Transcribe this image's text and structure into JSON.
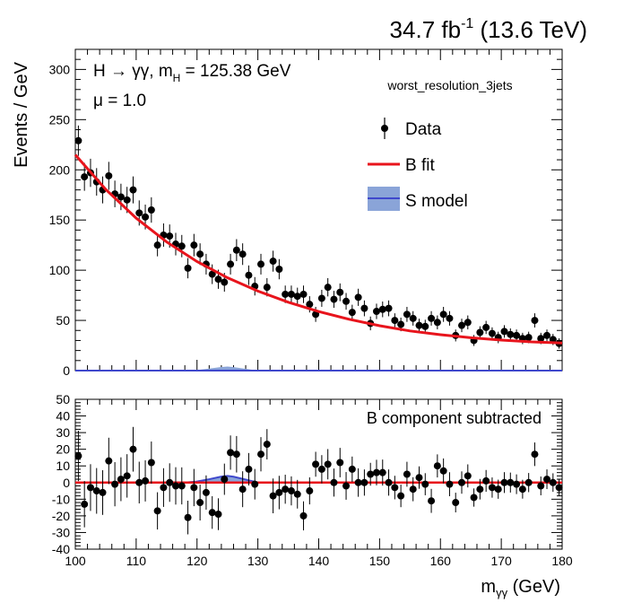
{
  "header": {
    "lumi": "34.7 fb",
    "lumi_sup": "-1",
    "energy": " (13.6 TeV)"
  },
  "annotations": {
    "process_prefix": "H → γγ, m",
    "process_sub": "H",
    "process_suffix": " = 125.38 GeV",
    "mu": "μ = 1.0",
    "category": "worst_resolution_3jets",
    "subtracted": "B component subtracted"
  },
  "legend": {
    "placement": "top-right",
    "entries": [
      {
        "label": "Data",
        "kind": "marker"
      },
      {
        "label": "B fit",
        "kind": "line"
      },
      {
        "label": "S model",
        "kind": "band"
      }
    ]
  },
  "colors": {
    "data": "#000000",
    "bfit": "#e8141c",
    "smodel_fill": "#8aa4d8",
    "smodel_line": "#3f48cc"
  },
  "chart_data": [
    {
      "type": "scatter",
      "panel": "main",
      "ylabel": "Events / GeV",
      "xlim": [
        100,
        180
      ],
      "ylim": [
        0,
        320
      ],
      "yticks": [
        0,
        50,
        100,
        150,
        200,
        250,
        300
      ],
      "series": [
        {
          "name": "Data",
          "x": [
            100.5,
            101.5,
            102.5,
            103.5,
            104.5,
            105.5,
            106.5,
            107.5,
            108.5,
            109.5,
            110.5,
            111.5,
            112.5,
            113.5,
            114.5,
            115.5,
            116.5,
            117.5,
            118.5,
            119.5,
            120.5,
            121.5,
            122.5,
            123.5,
            124.5,
            125.5,
            126.5,
            127.5,
            128.5,
            129.5,
            130.5,
            131.5,
            132.5,
            133.5,
            134.5,
            135.5,
            136.5,
            137.5,
            138.5,
            139.5,
            140.5,
            141.5,
            142.5,
            143.5,
            144.5,
            145.5,
            146.5,
            147.5,
            148.5,
            149.5,
            150.5,
            151.5,
            152.5,
            153.5,
            154.5,
            155.5,
            156.5,
            157.5,
            158.5,
            159.5,
            160.5,
            161.5,
            162.5,
            163.5,
            164.5,
            165.5,
            166.5,
            167.5,
            168.5,
            169.5,
            170.5,
            171.5,
            172.5,
            173.5,
            174.5,
            175.5,
            176.5,
            177.5,
            178.5,
            179.5
          ],
          "y": [
            229,
            193,
            197,
            188,
            180,
            194,
            176,
            173,
            170,
            180,
            157,
            153,
            160,
            125,
            135,
            134,
            126,
            124,
            102,
            125,
            116,
            106,
            96,
            91,
            88,
            106,
            120,
            116,
            95,
            84,
            106,
            83,
            109,
            101,
            76,
            76,
            74,
            76,
            66,
            56,
            72,
            83,
            71,
            78,
            69,
            58,
            73,
            62,
            47,
            59,
            61,
            62,
            50,
            46,
            56,
            52,
            45,
            44,
            52,
            48,
            56,
            52,
            35,
            45,
            48,
            30,
            38,
            43,
            37,
            33,
            39,
            36,
            35,
            32,
            33,
            50,
            32,
            35,
            31,
            27
          ]
        },
        {
          "name": "B fit",
          "model": "exponential",
          "x": [
            100,
            105,
            110,
            115,
            120,
            125,
            130,
            135,
            140,
            145,
            150,
            155,
            160,
            165,
            170,
            175,
            180
          ],
          "y": [
            215.0,
            180.5,
            151.9,
            128.2,
            108.6,
            92.5,
            79.2,
            68.1,
            58.8,
            51.1,
            44.7,
            39.5,
            35.8,
            32.7,
            30.4,
            28.6,
            27.5
          ]
        },
        {
          "name": "S model",
          "x": [
            118,
            120,
            122,
            124,
            125,
            126,
            128,
            130
          ],
          "y": [
            0,
            0.6,
            2.0,
            3.6,
            4.0,
            3.5,
            1.8,
            0
          ]
        }
      ]
    },
    {
      "type": "scatter",
      "panel": "ratio",
      "xlabel": "m",
      "xlabel_sub": "γγ",
      "xlabel_unit": " (GeV)",
      "xlim": [
        100,
        180
      ],
      "ylim": [
        -40,
        50
      ],
      "xticks": [
        100,
        110,
        120,
        130,
        140,
        150,
        160,
        170,
        180
      ],
      "yticks": [
        -40,
        -30,
        -20,
        -10,
        0,
        10,
        20,
        30,
        40,
        50
      ],
      "series": [
        {
          "name": "B component subtracted",
          "x": [
            100.5,
            101.5,
            102.5,
            103.5,
            104.5,
            105.5,
            106.5,
            107.5,
            108.5,
            109.5,
            110.5,
            111.5,
            112.5,
            113.5,
            114.5,
            115.5,
            116.5,
            117.5,
            118.5,
            119.5,
            120.5,
            121.5,
            122.5,
            123.5,
            124.5,
            125.5,
            126.5,
            127.5,
            128.5,
            129.5,
            130.5,
            131.5,
            132.5,
            133.5,
            134.5,
            135.5,
            136.5,
            137.5,
            138.5,
            139.5,
            140.5,
            141.5,
            142.5,
            143.5,
            144.5,
            145.5,
            146.5,
            147.5,
            148.5,
            149.5,
            150.5,
            151.5,
            152.5,
            153.5,
            154.5,
            155.5,
            156.5,
            157.5,
            158.5,
            159.5,
            160.5,
            161.5,
            162.5,
            163.5,
            164.5,
            165.5,
            166.5,
            167.5,
            168.5,
            169.5,
            170.5,
            171.5,
            172.5,
            173.5,
            174.5,
            175.5,
            176.5,
            177.5,
            178.5,
            179.5
          ],
          "y": [
            16,
            -13,
            -3,
            -5,
            -6,
            13,
            -1,
            2,
            4,
            20,
            0,
            1,
            12,
            -17,
            -3,
            0,
            -2,
            -2,
            -21,
            -3,
            -12,
            -6,
            -18,
            -19,
            2,
            18,
            17,
            -4,
            8,
            -1,
            17,
            23,
            -8,
            -6,
            -4,
            -5,
            -7,
            -20,
            -5,
            11,
            8,
            11,
            0,
            12,
            -2,
            8,
            0,
            0,
            5,
            6,
            6,
            0,
            -3,
            -8,
            5,
            -4,
            3,
            -1,
            -11,
            10,
            7,
            -1,
            -12,
            0,
            4,
            -9,
            -4,
            1,
            -3,
            -4,
            0,
            0,
            -1,
            -4,
            0,
            17,
            -2,
            2,
            0,
            -3
          ]
        },
        {
          "name": "S model",
          "x": [
            118,
            120,
            122,
            124,
            125,
            126,
            128,
            130
          ],
          "y": [
            0,
            0.6,
            2.0,
            3.6,
            4.0,
            3.5,
            1.8,
            0
          ]
        }
      ]
    }
  ]
}
